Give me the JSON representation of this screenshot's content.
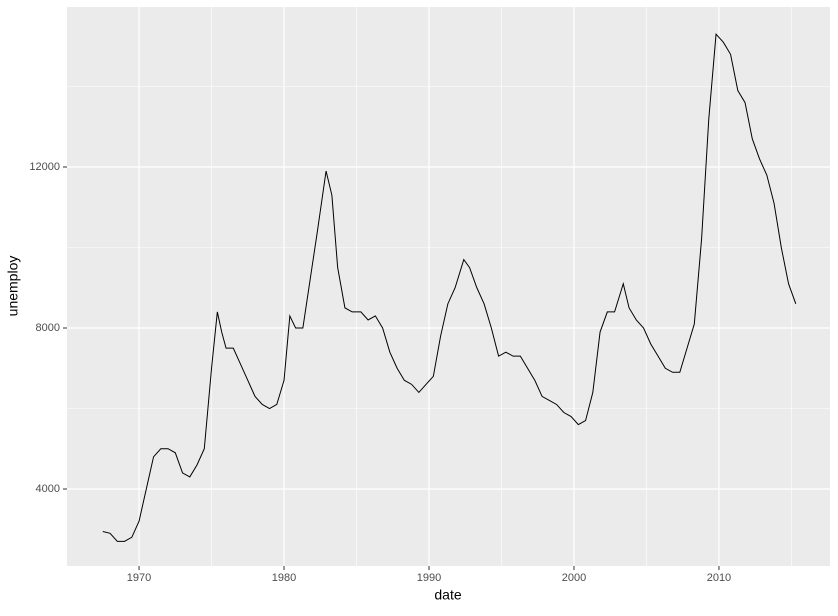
{
  "chart_data": {
    "type": "line",
    "x_label": "date",
    "y_label": "unemploy",
    "color": "#000000",
    "background": "#ebebeb",
    "grid": true,
    "xlim": [
      1965.03,
      2017.66
    ],
    "ylim": [
      2087,
      15975
    ],
    "xticks": [
      1970,
      1980,
      1990,
      2000,
      2010
    ],
    "yticks": [
      4000,
      8000,
      12000
    ],
    "minor_xticks": [
      1975,
      1985,
      1995,
      2005,
      2015
    ],
    "minor_yticks": [
      6000,
      10000,
      14000
    ],
    "x": [
      1967.5,
      1968.0,
      1968.5,
      1969.0,
      1969.5,
      1970.0,
      1970.5,
      1971.0,
      1971.5,
      1972.0,
      1972.5,
      1973.0,
      1973.5,
      1974.0,
      1974.5,
      1975.0,
      1975.4,
      1975.7,
      1976.0,
      1976.5,
      1977.0,
      1977.5,
      1978.0,
      1978.5,
      1979.0,
      1979.5,
      1980.0,
      1980.4,
      1980.8,
      1981.3,
      1981.8,
      1982.3,
      1982.9,
      1983.3,
      1983.7,
      1984.2,
      1984.7,
      1985.3,
      1985.8,
      1986.3,
      1986.8,
      1987.3,
      1987.8,
      1988.3,
      1988.8,
      1989.3,
      1989.8,
      1990.3,
      1990.8,
      1991.3,
      1991.8,
      1992.4,
      1992.8,
      1993.3,
      1993.8,
      1994.3,
      1994.8,
      1995.3,
      1995.8,
      1996.3,
      1996.8,
      1997.3,
      1997.8,
      1998.3,
      1998.8,
      1999.3,
      1999.8,
      2000.3,
      2000.8,
      2001.3,
      2001.8,
      2002.3,
      2002.8,
      2003.4,
      2003.8,
      2004.3,
      2004.8,
      2005.3,
      2005.8,
      2006.3,
      2006.8,
      2007.3,
      2007.8,
      2008.3,
      2008.8,
      2009.3,
      2009.8,
      2010.3,
      2010.8,
      2011.3,
      2011.8,
      2012.3,
      2012.8,
      2013.3,
      2013.8,
      2014.3,
      2014.8,
      2015.3
    ],
    "values": [
      2944,
      2900,
      2700,
      2700,
      2800,
      3200,
      4000,
      4800,
      5000,
      5000,
      4900,
      4400,
      4300,
      4600,
      5000,
      7000,
      8400,
      7900,
      7500,
      7500,
      7100,
      6700,
      6300,
      6100,
      6000,
      6100,
      6700,
      8300,
      8000,
      8000,
      9200,
      10400,
      11900,
      11300,
      9500,
      8500,
      8400,
      8400,
      8200,
      8300,
      8000,
      7400,
      7000,
      6700,
      6600,
      6400,
      6600,
      6800,
      7800,
      8600,
      9000,
      9700,
      9500,
      9000,
      8600,
      8000,
      7300,
      7400,
      7300,
      7300,
      7000,
      6700,
      6300,
      6200,
      6100,
      5900,
      5800,
      5600,
      5700,
      6400,
      7900,
      8400,
      8400,
      9100,
      8500,
      8200,
      8000,
      7600,
      7300,
      7000,
      6900,
      6900,
      7500,
      8100,
      10200,
      13200,
      15300,
      15100,
      14800,
      13900,
      13600,
      12700,
      12200,
      11800,
      11100,
      10000,
      9100,
      8600
    ]
  }
}
